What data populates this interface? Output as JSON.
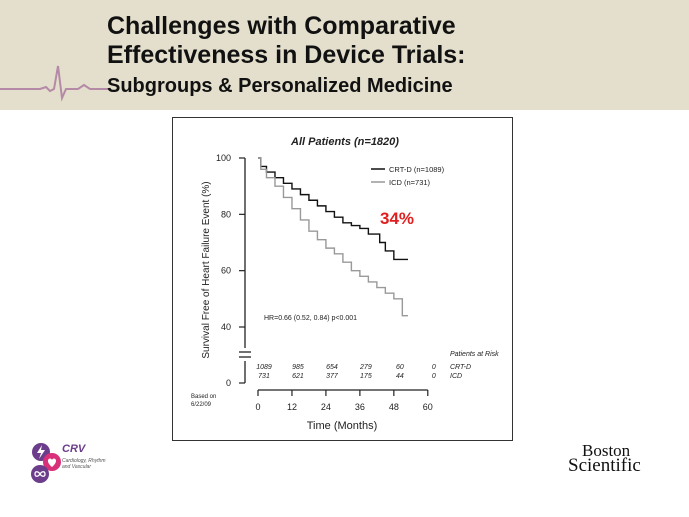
{
  "header": {
    "title_line1": "Challenges with Comparative",
    "title_line2": "Effectiveness in Device Trials:",
    "subtitle": "Subgroups & Personalized Medicine"
  },
  "chart_data": {
    "type": "line",
    "title": "All Patients (n=1820)",
    "xlabel": "Time (Months)",
    "ylabel": "Survival Free of Heart Failure Event (%)",
    "xlim": [
      0,
      60
    ],
    "ylim": [
      0,
      100
    ],
    "xticks": [
      "0",
      "12",
      "24",
      "36",
      "48",
      "60"
    ],
    "yticks": [
      "0",
      "40",
      "60",
      "80",
      "100"
    ],
    "axis_break": true,
    "legend_position": "top-right",
    "series": [
      {
        "name": "CRT-D (n=1089)",
        "color": "#111111",
        "x": [
          0,
          1,
          3,
          6,
          9,
          12,
          15,
          18,
          21,
          24,
          27,
          30,
          33,
          36,
          39,
          41,
          42,
          43,
          44,
          45,
          46,
          48,
          50,
          53
        ],
        "y": [
          100,
          97,
          95,
          93,
          91,
          89,
          87,
          85,
          83,
          81,
          79,
          77,
          76,
          75,
          73,
          73,
          73,
          70,
          70,
          67,
          67,
          64,
          64,
          64
        ]
      },
      {
        "name": "ICD (n=731)",
        "color": "#999999",
        "x": [
          0,
          1,
          3,
          6,
          9,
          12,
          15,
          18,
          21,
          24,
          27,
          30,
          33,
          36,
          39,
          42,
          45,
          46,
          48,
          50,
          51,
          53
        ],
        "y": [
          100,
          96,
          93,
          90,
          86,
          82,
          78,
          74,
          71,
          68,
          66,
          63,
          60,
          58,
          56,
          54,
          52,
          52,
          50,
          50,
          44,
          44
        ]
      }
    ],
    "annotations": {
      "reduction": "34%",
      "reduction_color": "#e02020",
      "hazard_ratio": "HR=0.66 (0.52, 0.84) p<0.001",
      "based_on": "Based on 6/22/09"
    },
    "patients_at_risk": {
      "label": "Patients at Risk",
      "times": [
        0,
        12,
        24,
        36,
        48,
        60
      ],
      "rows": [
        {
          "name": "CRT-D",
          "values": [
            "1089",
            "985",
            "654",
            "279",
            "60",
            "0"
          ]
        },
        {
          "name": "ICD",
          "values": [
            "731",
            "621",
            "377",
            "175",
            "44",
            "0"
          ]
        }
      ]
    }
  },
  "logos": {
    "crv_name": "CRV",
    "crv_tagline": "Cardiology, Rhythm and Vascular",
    "company_line1": "Boston",
    "company_line2": "Scientific"
  },
  "colors": {
    "banner": "#e3dfcc",
    "ecg": "#b48aa6",
    "crv_purple": "#6b3d8a",
    "crv_pink": "#d9307a"
  }
}
